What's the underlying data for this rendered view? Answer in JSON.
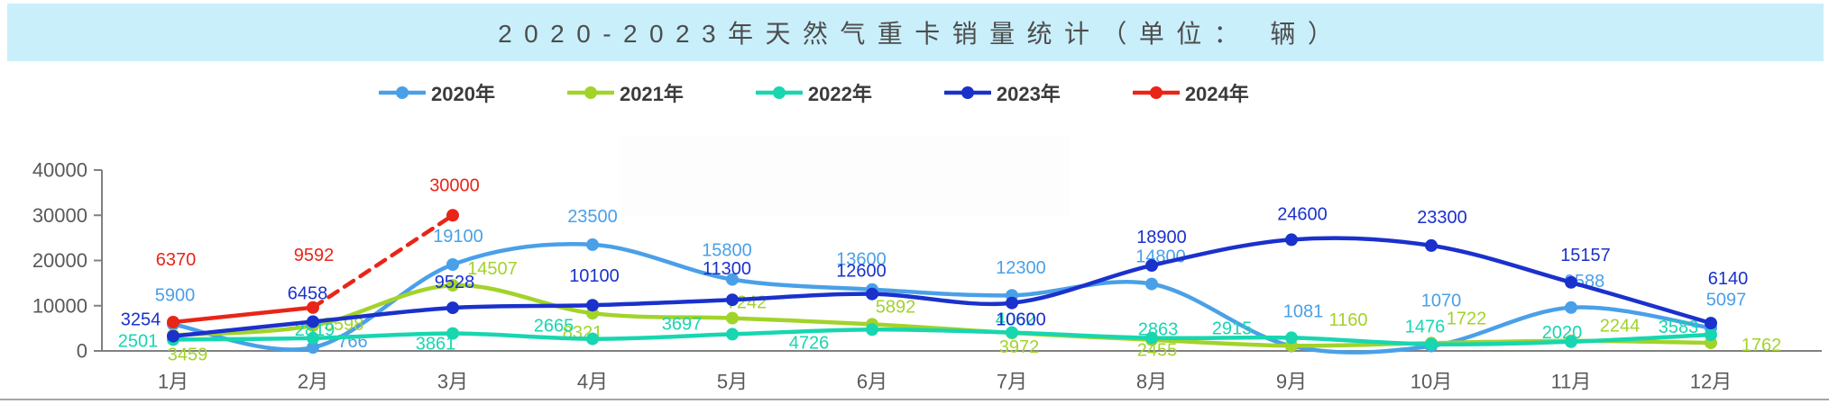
{
  "title": "2020-2023年天然气重卡销量统计（单位： 辆）",
  "colors": {
    "title_bar_bg": "#c9effb",
    "title_text": "#4d4d4d",
    "axis": "#808080",
    "tick_text": "#595959",
    "legend_text": "#3b3b3b",
    "divider": "#a6a6a6"
  },
  "legend": {
    "position": "top-center",
    "items": [
      {
        "label": "2020年",
        "color": "#4aa0e8"
      },
      {
        "label": "2021年",
        "color": "#a2d32a"
      },
      {
        "label": "2022年",
        "color": "#17d6b0"
      },
      {
        "label": "2023年",
        "color": "#1a31cc"
      },
      {
        "label": "2024年",
        "color": "#e92517"
      }
    ]
  },
  "chart_data": {
    "type": "line",
    "title": "2020-2023年天然气重卡销量统计（单位： 辆）",
    "xlabel": "",
    "ylabel": "",
    "ylim": [
      0,
      40000
    ],
    "grid": false,
    "legend_position": "top",
    "categories": [
      "1月",
      "2月",
      "3月",
      "4月",
      "5月",
      "6月",
      "7月",
      "8月",
      "9月",
      "10月",
      "11月",
      "12月"
    ],
    "y_ticks": [
      "0",
      "10000",
      "20000",
      "30000",
      "40000"
    ],
    "series": [
      {
        "name": "2020年",
        "color": "#4aa0e8",
        "style": "solid",
        "values": [
          5900,
          766,
          19100,
          23500,
          15800,
          13600,
          12300,
          14800,
          1081,
          1070,
          9588,
          5097
        ],
        "label_offsets": [
          [
            2,
            -32
          ],
          [
            44,
            -6
          ],
          [
            6,
            -31
          ],
          [
            0,
            -31
          ],
          [
            -6,
            -32
          ],
          [
            -12,
            -33
          ],
          [
            10,
            -30
          ],
          [
            10,
            -30
          ],
          [
            13,
            -38
          ],
          [
            11,
            -50
          ],
          [
            15,
            -29
          ],
          [
            17,
            -31
          ]
        ]
      },
      {
        "name": "2021年",
        "color": "#a2d32a",
        "style": "solid",
        "values": [
          3459,
          5598,
          14507,
          8321,
          7242,
          5892,
          3972,
          2455,
          1160,
          1722,
          2244,
          1762
        ],
        "label_offsets": [
          [
            16,
            22
          ],
          [
            34,
            -1
          ],
          [
            44,
            -18
          ],
          [
            -11,
            22
          ],
          [
            16,
            -17
          ],
          [
            26,
            -19
          ],
          [
            8,
            16
          ],
          [
            6,
            12
          ],
          [
            63,
            -28
          ],
          [
            39,
            -27
          ],
          [
            54,
            -16
          ],
          [
            56,
            3
          ]
        ]
      },
      {
        "name": "2022年",
        "color": "#17d6b0",
        "style": "solid",
        "values": [
          2501,
          2819,
          3861,
          2665,
          3697,
          4726,
          4062,
          2863,
          2915,
          1476,
          2020,
          3583
        ],
        "label_offsets": [
          [
            -39,
            2
          ],
          [
            2,
            -9
          ],
          [
            -19,
            12
          ],
          [
            -43,
            -14
          ],
          [
            -56,
            -11
          ],
          [
            -70,
            15
          ],
          [
            4,
            -14
          ],
          [
            7,
            -9
          ],
          [
            -66,
            -10
          ],
          [
            -7,
            -19
          ],
          [
            -10,
            -10
          ],
          [
            -36,
            -8
          ]
        ]
      },
      {
        "name": "2023年",
        "color": "#1a31cc",
        "style": "solid",
        "values": [
          3254,
          6458,
          9528,
          10100,
          11300,
          12600,
          10600,
          18900,
          24600,
          23300,
          15157,
          6140
        ],
        "label_offsets": [
          [
            -36,
            -18
          ],
          [
            -6,
            -31
          ],
          [
            2,
            -28
          ],
          [
            2,
            -32
          ],
          [
            -6,
            -34
          ],
          [
            -12,
            -25
          ],
          [
            10,
            19
          ],
          [
            11,
            -31
          ],
          [
            12,
            -28
          ],
          [
            12,
            -31
          ],
          [
            16,
            -30
          ],
          [
            19,
            -49
          ]
        ]
      },
      {
        "name": "2024年",
        "color": "#e92517",
        "style": "dashed-projection",
        "dashed_from": 1,
        "values": [
          6370,
          9592,
          30000
        ],
        "label_offsets": [
          [
            3,
            -69
          ],
          [
            1,
            -58
          ],
          [
            2,
            -33
          ]
        ]
      }
    ]
  }
}
